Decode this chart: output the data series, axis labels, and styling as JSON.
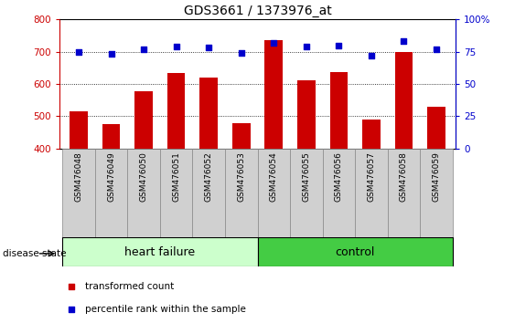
{
  "title": "GDS3661 / 1373976_at",
  "samples": [
    "GSM476048",
    "GSM476049",
    "GSM476050",
    "GSM476051",
    "GSM476052",
    "GSM476053",
    "GSM476054",
    "GSM476055",
    "GSM476056",
    "GSM476057",
    "GSM476058",
    "GSM476059"
  ],
  "transformed_count": [
    515,
    475,
    578,
    633,
    620,
    478,
    735,
    610,
    638,
    490,
    700,
    530
  ],
  "percentile_rank": [
    75,
    73,
    77,
    79,
    78,
    74,
    82,
    79,
    80,
    72,
    83,
    77
  ],
  "bar_color": "#cc0000",
  "dot_color": "#0000cc",
  "ylim_left": [
    400,
    800
  ],
  "ylim_right": [
    0,
    100
  ],
  "yticks_left": [
    400,
    500,
    600,
    700,
    800
  ],
  "yticks_right": [
    0,
    25,
    50,
    75,
    100
  ],
  "ytick_labels_right": [
    "0",
    "25",
    "50",
    "75",
    "100%"
  ],
  "group_band_color_hf": "#ccffcc",
  "group_band_color_ctrl": "#44cc44",
  "disease_state_label": "disease state",
  "legend_item1_label": "transformed count",
  "legend_item2_label": "percentile rank within the sample",
  "bar_bottom": 400,
  "tick_label_bg": "#d0d0d0",
  "n_hf": 6,
  "n_ctrl": 6,
  "hf_label": "heart failure",
  "ctrl_label": "control"
}
